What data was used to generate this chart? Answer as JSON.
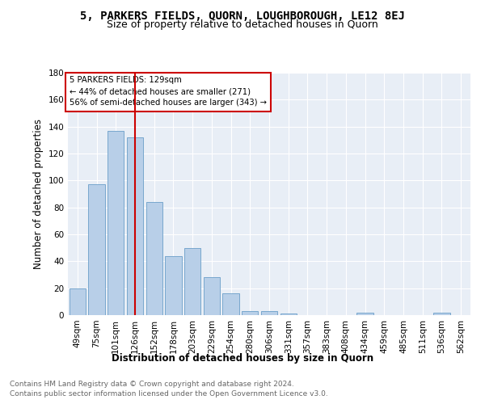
{
  "title": "5, PARKERS FIELDS, QUORN, LOUGHBOROUGH, LE12 8EJ",
  "subtitle": "Size of property relative to detached houses in Quorn",
  "xlabel": "Distribution of detached houses by size in Quorn",
  "ylabel": "Number of detached properties",
  "categories": [
    "49sqm",
    "75sqm",
    "101sqm",
    "126sqm",
    "152sqm",
    "178sqm",
    "203sqm",
    "229sqm",
    "254sqm",
    "280sqm",
    "306sqm",
    "331sqm",
    "357sqm",
    "383sqm",
    "408sqm",
    "434sqm",
    "459sqm",
    "485sqm",
    "511sqm",
    "536sqm",
    "562sqm"
  ],
  "values": [
    20,
    97,
    137,
    132,
    84,
    44,
    50,
    28,
    16,
    3,
    3,
    1,
    0,
    0,
    0,
    2,
    0,
    0,
    0,
    2,
    0
  ],
  "bar_color": "#b8cfe8",
  "bar_edge_color": "#6a9ec8",
  "vline_x": 3,
  "vline_color": "#cc0000",
  "annotation_lines": [
    "5 PARKERS FIELDS: 129sqm",
    "← 44% of detached houses are smaller (271)",
    "56% of semi-detached houses are larger (343) →"
  ],
  "annotation_box_color": "#ffffff",
  "annotation_box_edge": "#cc0000",
  "ylim": [
    0,
    180
  ],
  "yticks": [
    0,
    20,
    40,
    60,
    80,
    100,
    120,
    140,
    160,
    180
  ],
  "footer_line1": "Contains HM Land Registry data © Crown copyright and database right 2024.",
  "footer_line2": "Contains public sector information licensed under the Open Government Licence v3.0.",
  "bg_color": "#e8eef6",
  "title_fontsize": 10,
  "subtitle_fontsize": 9,
  "label_fontsize": 8.5,
  "tick_fontsize": 7.5,
  "footer_fontsize": 6.5
}
